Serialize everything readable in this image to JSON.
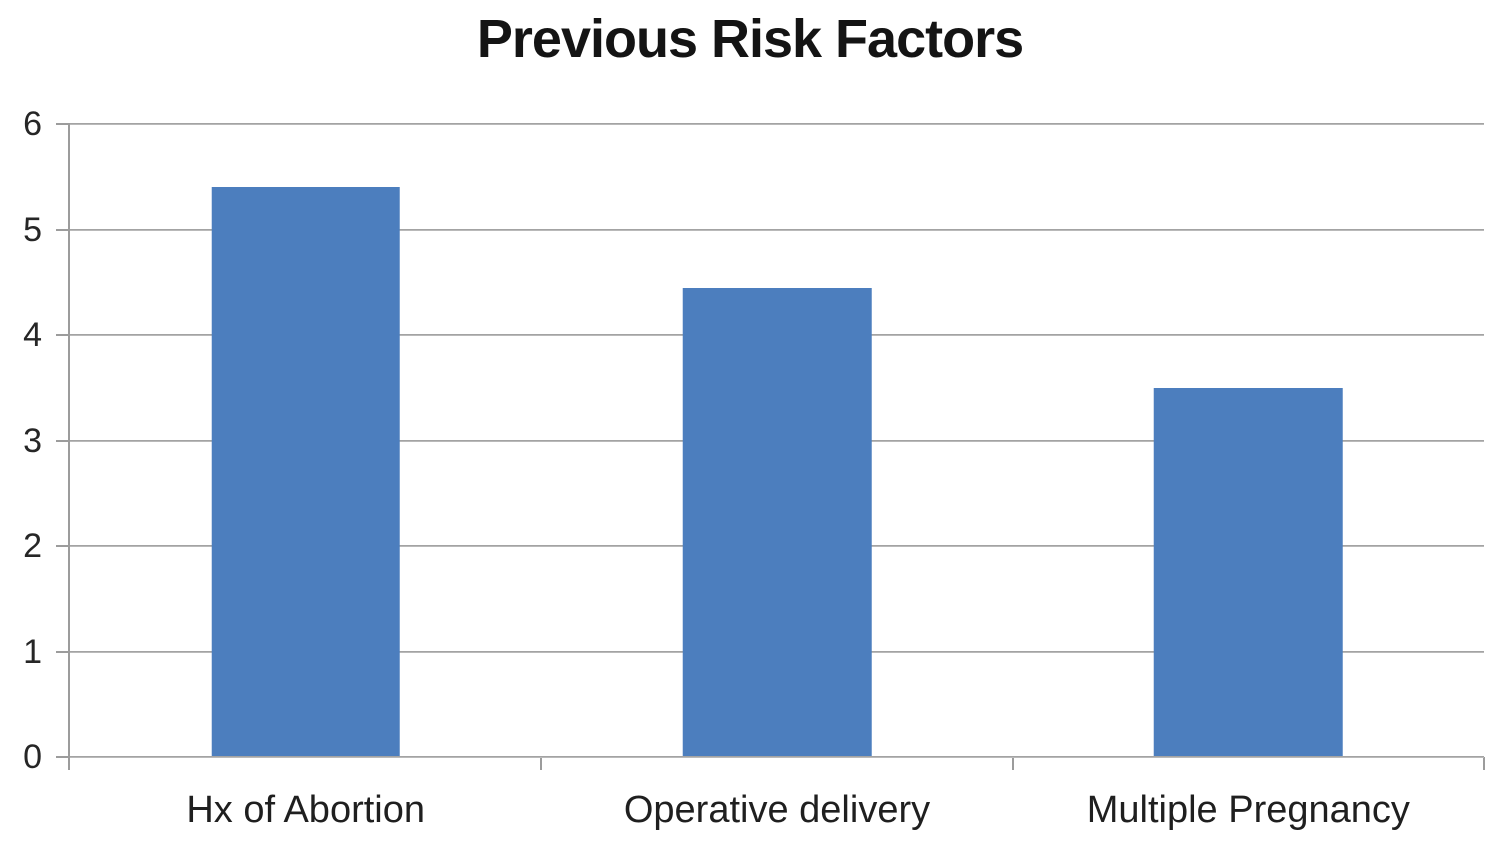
{
  "title": "Previous Risk Factors",
  "colors": {
    "bar_fill": "#4C7EBE",
    "gridline": "#A6A6A6",
    "axis_line": "#9C9C9C",
    "title_text": "#141414",
    "tick_text": "#262626",
    "background": "#FFFFFF"
  },
  "chart_data": {
    "type": "bar",
    "title": "Previous Risk Factors",
    "categories": [
      "Hx of Abortion",
      "Operative delivery",
      "Multiple Pregnancy"
    ],
    "values": [
      5.4,
      4.45,
      3.5
    ],
    "series_color": "#4C7EBE",
    "xlabel": "",
    "ylabel": "",
    "ylim": [
      0,
      6
    ],
    "y_ticks": [
      0,
      1,
      2,
      3,
      4,
      5,
      6
    ],
    "grid": "horizontal",
    "legend_position": "none",
    "bar_width_fraction_of_category": 0.4
  }
}
